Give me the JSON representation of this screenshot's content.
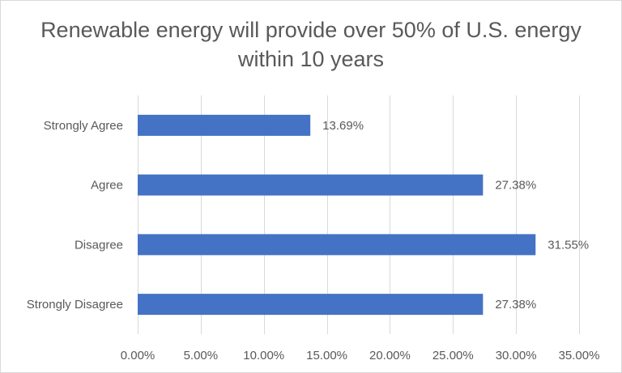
{
  "chart_data": {
    "type": "bar",
    "orientation": "horizontal",
    "title": "Renewable energy will provide over 50% of U.S. energy within 10 years",
    "categories": [
      "Strongly Agree",
      "Agree",
      "Disagree",
      "Strongly Disagree"
    ],
    "values": [
      13.69,
      27.38,
      31.55,
      27.38
    ],
    "data_labels": [
      "13.69%",
      "27.38%",
      "31.55%",
      "27.38%"
    ],
    "xlim": [
      0,
      35
    ],
    "x_ticks": [
      0,
      5,
      10,
      15,
      20,
      25,
      30,
      35
    ],
    "x_tick_labels": [
      "0.00%",
      "5.00%",
      "10.00%",
      "15.00%",
      "20.00%",
      "25.00%",
      "30.00%",
      "35.00%"
    ],
    "xlabel": "",
    "ylabel": "",
    "grid": "vertical",
    "legend": "none",
    "bar_color": "#4472C4",
    "grid_color": "#d9d9d9"
  }
}
